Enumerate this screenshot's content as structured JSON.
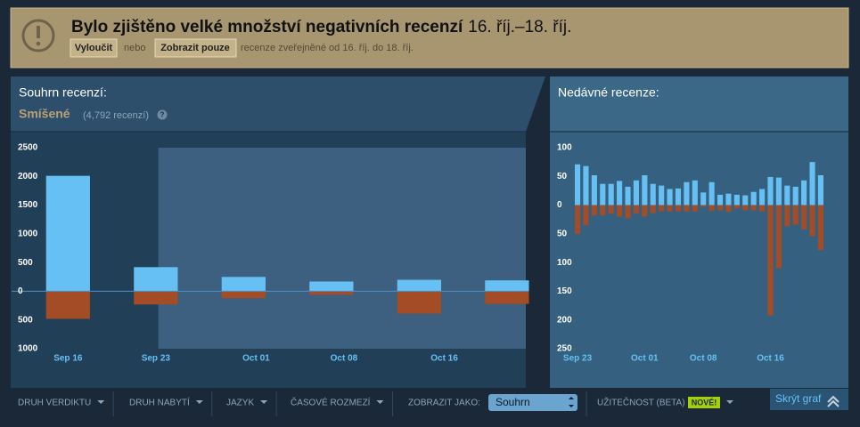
{
  "banner": {
    "title": "Bylo zjištěno velké množství negativních recenzí",
    "dates": "16. říj.–18. říj.",
    "exclude": "Vyloučit",
    "or": "nebo",
    "show_only": "Zobrazit pouze",
    "description": "recenze zveřejněné od 16. říj. do 18. říj."
  },
  "summary": {
    "heading": "Souhrn recenzí:",
    "rating": "Smíšené",
    "count": "(4,792 recenzí)",
    "help": "?"
  },
  "recent_heading": "Nedávné recenze:",
  "filters": [
    "DRUH VERDIKTU",
    "DRUH NABYTÍ",
    "JAZYK",
    "ČASOVÉ ROZMEZÍ"
  ],
  "display_as": {
    "label": "ZOBRAZIT JAKO:",
    "value": "Souhrn"
  },
  "helpfulness": {
    "label": "UŽITEČNOST (BETA)",
    "badge": "NOVÉ!"
  },
  "hide_graph": "Skrýt graf",
  "chart_data": [
    {
      "type": "bar",
      "x": [
        0,
        7,
        14,
        21,
        28,
        35
      ],
      "xlim": [
        -4.5,
        36.5
      ],
      "xticks": [
        {
          "value": 0,
          "label": "Sep 16"
        },
        {
          "value": 7,
          "label": "Sep 23"
        },
        {
          "value": 15,
          "label": "Oct 01"
        },
        {
          "value": 22,
          "label": "Oct 08"
        },
        {
          "value": 30,
          "label": "Oct 16"
        }
      ],
      "highlight": [
        7.2,
        36.5
      ],
      "ylim": [
        -1000,
        2500
      ],
      "yticks": [
        2500,
        2000,
        1500,
        1000,
        500,
        0,
        {
          "value": -500,
          "label": "500"
        },
        {
          "value": -1000,
          "label": "1000"
        }
      ],
      "series": [
        {
          "color": "#66c0f4",
          "values": [
            2010,
            420,
            250,
            170,
            200,
            190
          ]
        },
        {
          "color": "#a34c25",
          "values": [
            -480,
            -230,
            -120,
            -60,
            -390,
            -220
          ]
        }
      ]
    },
    {
      "type": "bar",
      "x": [
        0,
        1,
        2,
        3,
        4,
        5,
        6,
        7,
        8,
        9,
        10,
        11,
        12,
        13,
        14,
        15,
        16,
        17,
        18,
        19,
        20,
        21,
        22,
        23,
        24,
        25,
        26,
        27,
        28,
        29
      ],
      "xlim": [
        -3.3,
        32.3
      ],
      "xticks": [
        {
          "value": 0,
          "label": "Sep 23"
        },
        {
          "value": 8,
          "label": "Oct 01"
        },
        {
          "value": 15,
          "label": "Oct 08"
        },
        {
          "value": 23,
          "label": "Oct 16"
        }
      ],
      "ylim": [
        -250,
        100
      ],
      "yticks": [
        100,
        50,
        0,
        {
          "value": -50,
          "label": "50"
        },
        {
          "value": -100,
          "label": "100"
        },
        {
          "value": -150,
          "label": "150"
        },
        {
          "value": -200,
          "label": "200"
        },
        {
          "value": -250,
          "label": "250"
        }
      ],
      "series": [
        {
          "color": "#66c0f4",
          "values": [
            71,
            68,
            52,
            37,
            37,
            42,
            32,
            43,
            52,
            37,
            34,
            28,
            29,
            40,
            43,
            22,
            40,
            18,
            20,
            18,
            17,
            23,
            28,
            49,
            48,
            34,
            32,
            43,
            75,
            52
          ]
        },
        {
          "color": "#a34c25",
          "values": [
            -50,
            -35,
            -18,
            -18,
            -15,
            -20,
            -23,
            -15,
            -20,
            -14,
            -11,
            -11,
            -11,
            -11,
            -11,
            -3,
            -10,
            -9,
            -12,
            -6,
            -9,
            -9,
            -11,
            -192,
            -110,
            -37,
            -34,
            -42,
            -54,
            -78
          ]
        }
      ]
    }
  ]
}
